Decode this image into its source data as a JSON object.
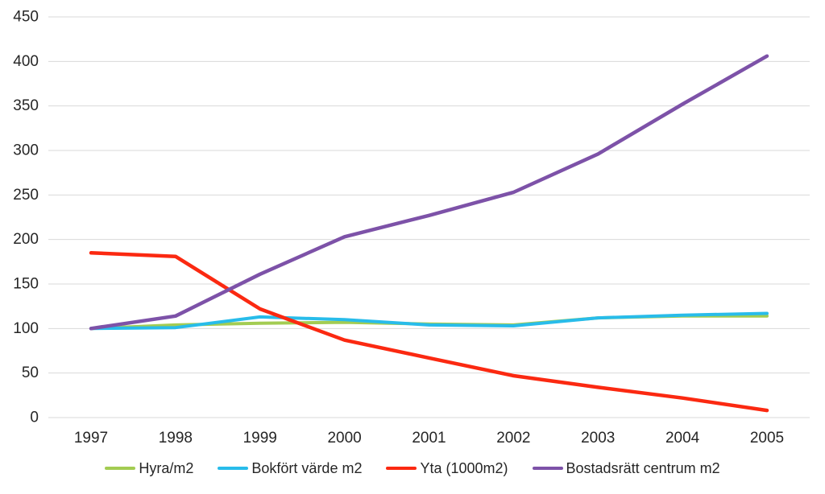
{
  "chart_data": {
    "type": "line",
    "title": "",
    "categories": [
      "1997",
      "1998",
      "1999",
      "2000",
      "2001",
      "2002",
      "2003",
      "2004",
      "2005"
    ],
    "series": [
      {
        "name": "Hyra/m2",
        "color": "#a3cc52",
        "width": 4,
        "values": [
          100,
          104,
          106,
          107,
          105,
          104,
          112,
          114,
          114
        ]
      },
      {
        "name": "Bokfört värde m2",
        "color": "#28bcea",
        "width": 4,
        "values": [
          100,
          101,
          113,
          110,
          104,
          103,
          112,
          115,
          117
        ]
      },
      {
        "name": "Yta (1000m2)",
        "color": "#fb2911",
        "width": 4.5,
        "values": [
          185,
          181,
          122,
          87,
          67,
          47,
          34,
          22,
          8
        ]
      },
      {
        "name": "Bostadsrätt centrum m2",
        "color": "#7d52a8",
        "width": 4.5,
        "values": [
          100,
          114,
          161,
          203,
          227,
          253,
          296,
          352,
          406
        ]
      }
    ],
    "xlabel": "",
    "ylabel": "",
    "ylim": [
      0,
      450
    ],
    "y_tick_step": 50,
    "y_tick_labels": [
      "0",
      "50",
      "100",
      "150",
      "200",
      "250",
      "300",
      "350",
      "400",
      "450"
    ],
    "grid": true,
    "grid_color": "#d9d9d9",
    "text_color": "#262626",
    "background_color": "#ffffff",
    "legend_position": "bottom"
  }
}
